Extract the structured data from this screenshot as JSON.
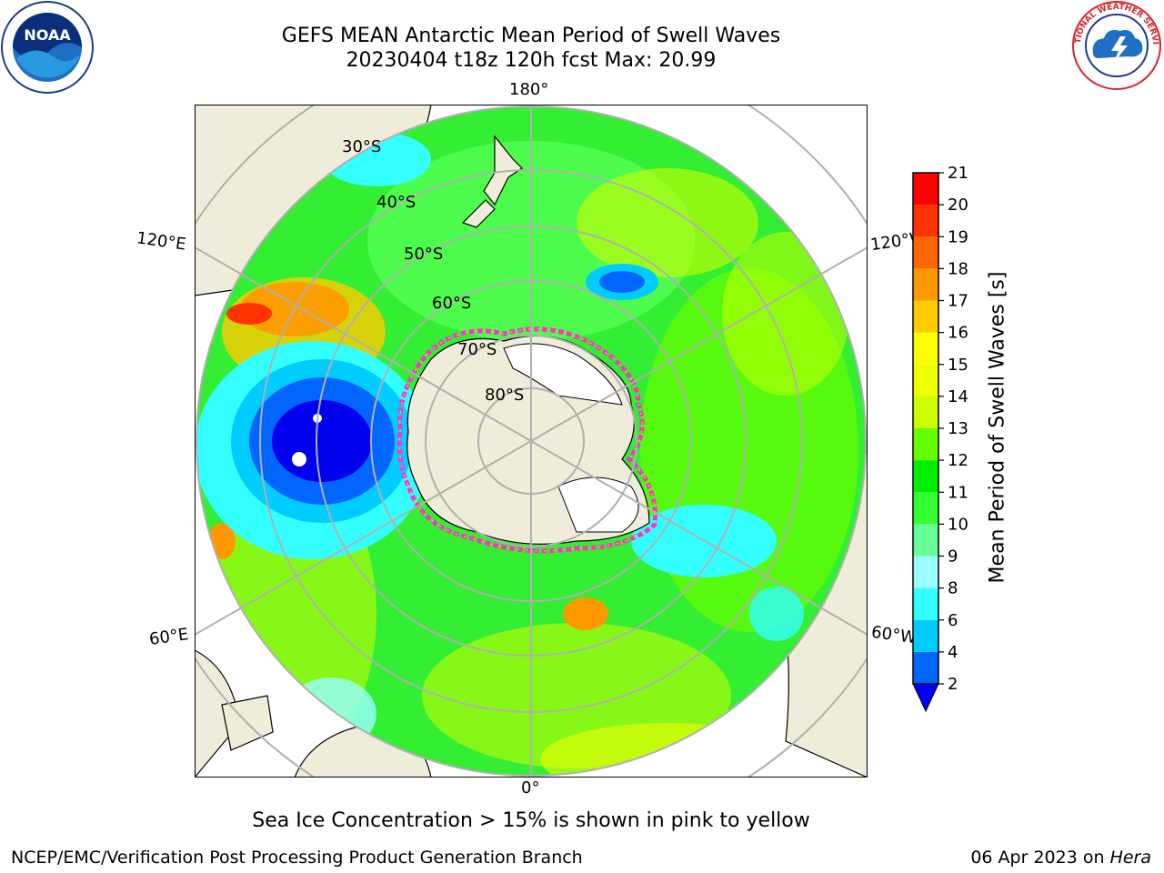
{
  "header": {
    "title_line1": "GEFS MEAN Antarctic Mean Period of Swell Waves",
    "title_line2": "20230404 t18z 120h fcst   Max: 20.99"
  },
  "logos": {
    "left": {
      "icon": "noaa-logo",
      "text": "NOAA",
      "ring_text": "NATIONAL OCEANIC AND ATMOSPHERIC ADMINISTRATION · U.S. DEPARTMENT OF COMMERCE"
    },
    "right": {
      "icon": "nws-logo",
      "ring_text": "NATIONAL WEATHER SERVICE"
    }
  },
  "map": {
    "projection": "south polar stereographic",
    "longitude_labels": [
      "180°",
      "120°E",
      "120°W",
      "60°E",
      "60°W",
      "0°"
    ],
    "latitude_labels": [
      "30°S",
      "40°S",
      "50°S",
      "60°S",
      "70°S",
      "80°S"
    ],
    "colors": {
      "land": "#efecd9",
      "grid": "#b0b0b0",
      "ice": "#ff33cc"
    }
  },
  "colorbar": {
    "label": "Mean Period of Swell Waves [s]",
    "ticks": [
      "2",
      "4",
      "6",
      "8",
      "9",
      "10",
      "11",
      "12",
      "13",
      "14",
      "15",
      "16",
      "17",
      "18",
      "19",
      "20",
      "21"
    ],
    "colors": [
      "#0066ff",
      "#00ccff",
      "#33ffff",
      "#99ffff",
      "#66ff99",
      "#33ff33",
      "#00ee00",
      "#66ff00",
      "#ccff00",
      "#eeff00",
      "#ffff00",
      "#ffcc00",
      "#ff9900",
      "#ff6600",
      "#ff3300",
      "#ff0000"
    ],
    "extend_color": "#0000ff"
  },
  "note": "Sea Ice Concentration > 15% is shown in pink to yellow",
  "footer": {
    "left": "NCEP/EMC/Verification Post Processing Product Generation Branch",
    "date": "06 Apr 2023 on ",
    "host": "Hera"
  }
}
